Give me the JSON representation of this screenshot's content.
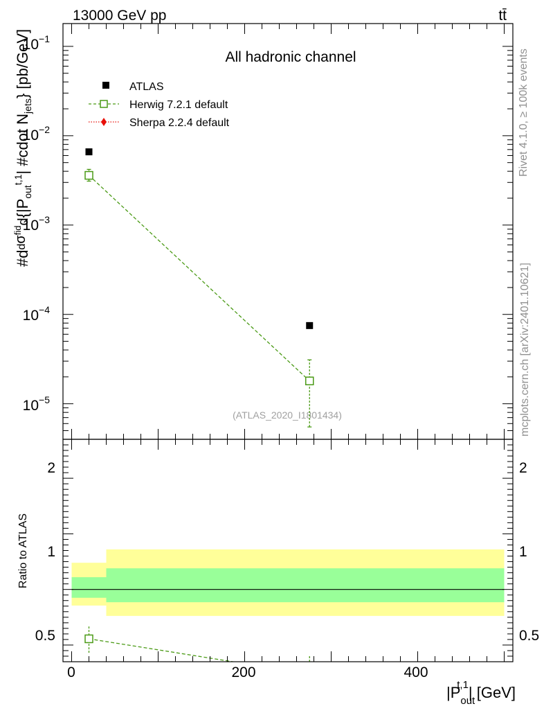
{
  "header": {
    "energy_label": "13000 GeV pp",
    "process_label": "tt̄"
  },
  "side_text": {
    "rivet_label": "Rivet 4.1.0, ≥ 100k events",
    "mcplots_label": "mcplots.cern.ch [arXiv:2401.10621]"
  },
  "chart_data": [
    {
      "type": "scatter",
      "panel": "main",
      "title": "All hadronic channel",
      "ylabel": "#d d²σ^fid / d²{|P_out^t,1| #cdot N_jets} [pb/GeV]",
      "ylabel_parts": {
        "p1": "#d",
        "p2": "d",
        "p3": "σ",
        "p4": "fid",
        "p5": "d",
        "p6": "{|P",
        "p7": "out",
        "p8": "t,1",
        "p9": "| #cdot N",
        "p10": "jets",
        "p11": "} [pb/GeV]"
      },
      "yscale": "log",
      "ylim": [
        4e-06,
        0.18
      ],
      "xlim": [
        -10,
        510
      ],
      "y_tick_labels": [
        {
          "base": "10",
          "exp": "−1",
          "value": 0.1
        },
        {
          "base": "10",
          "exp": "−2",
          "value": 0.01
        },
        {
          "base": "10",
          "exp": "−3",
          "value": 0.001
        },
        {
          "base": "10",
          "exp": "−4",
          "value": 0.0001
        },
        {
          "base": "10",
          "exp": "−5",
          "value": 1e-05
        }
      ],
      "watermark": "(ATLAS_2020_I1801434)",
      "legend_position": "top-left",
      "series": [
        {
          "name": "ATLAS",
          "marker": "filled-square",
          "color": "#000000",
          "x": [
            20,
            275
          ],
          "y": [
            0.0066,
            7.5e-05
          ]
        },
        {
          "name": "Herwig 7.2.1 default",
          "marker": "open-square",
          "color": "#4a9a15",
          "linestyle": "dashed",
          "x": [
            20,
            275
          ],
          "y": [
            0.0036,
            1.8e-05
          ],
          "yerr_low": [
            0.0031,
            5.5e-06
          ],
          "yerr_high": [
            0.0042,
            3.1e-05
          ]
        },
        {
          "name": "Sherpa 2.2.4 default",
          "marker": "diamond",
          "color": "#e8100a",
          "linestyle": "dotted",
          "x": [],
          "y": []
        }
      ]
    },
    {
      "type": "line",
      "panel": "ratio",
      "ylabel": "Ratio to ATLAS",
      "xlabel": "|P_out^t,1| [GeV]",
      "xlabel_parts": {
        "p1": "|P",
        "p2": "out",
        "p3": "t,1",
        "p4": "| [GeV]"
      },
      "xlim": [
        -10,
        510
      ],
      "ylim": [
        0.35,
        2.35
      ],
      "x_tick_labels": [
        {
          "value": 0,
          "label": "0"
        },
        {
          "value": 200,
          "label": "200"
        },
        {
          "value": 400,
          "label": "400"
        }
      ],
      "y_tick_labels": [
        {
          "value": 0.5,
          "label": "0.5"
        },
        {
          "value": 1,
          "label": "1"
        },
        {
          "value": 2,
          "label": "2"
        }
      ],
      "reference_line": 1.0,
      "bands": [
        {
          "x0": 0,
          "x1": 40,
          "yellow": [
            0.855,
            1.24
          ],
          "green": [
            0.925,
            1.11
          ]
        },
        {
          "x0": 40,
          "x1": 500,
          "yellow": [
            0.762,
            1.36
          ],
          "green": [
            0.885,
            1.19
          ]
        }
      ],
      "series": [
        {
          "name": "Herwig 7.2.1 default",
          "color": "#4a9a15",
          "linestyle": "dashed",
          "x": [
            20,
            275
          ],
          "y": [
            0.556,
            0.24
          ],
          "yerr_low": [
            0.43,
            0.07
          ],
          "yerr_high": [
            0.675,
            0.41
          ]
        }
      ]
    }
  ]
}
